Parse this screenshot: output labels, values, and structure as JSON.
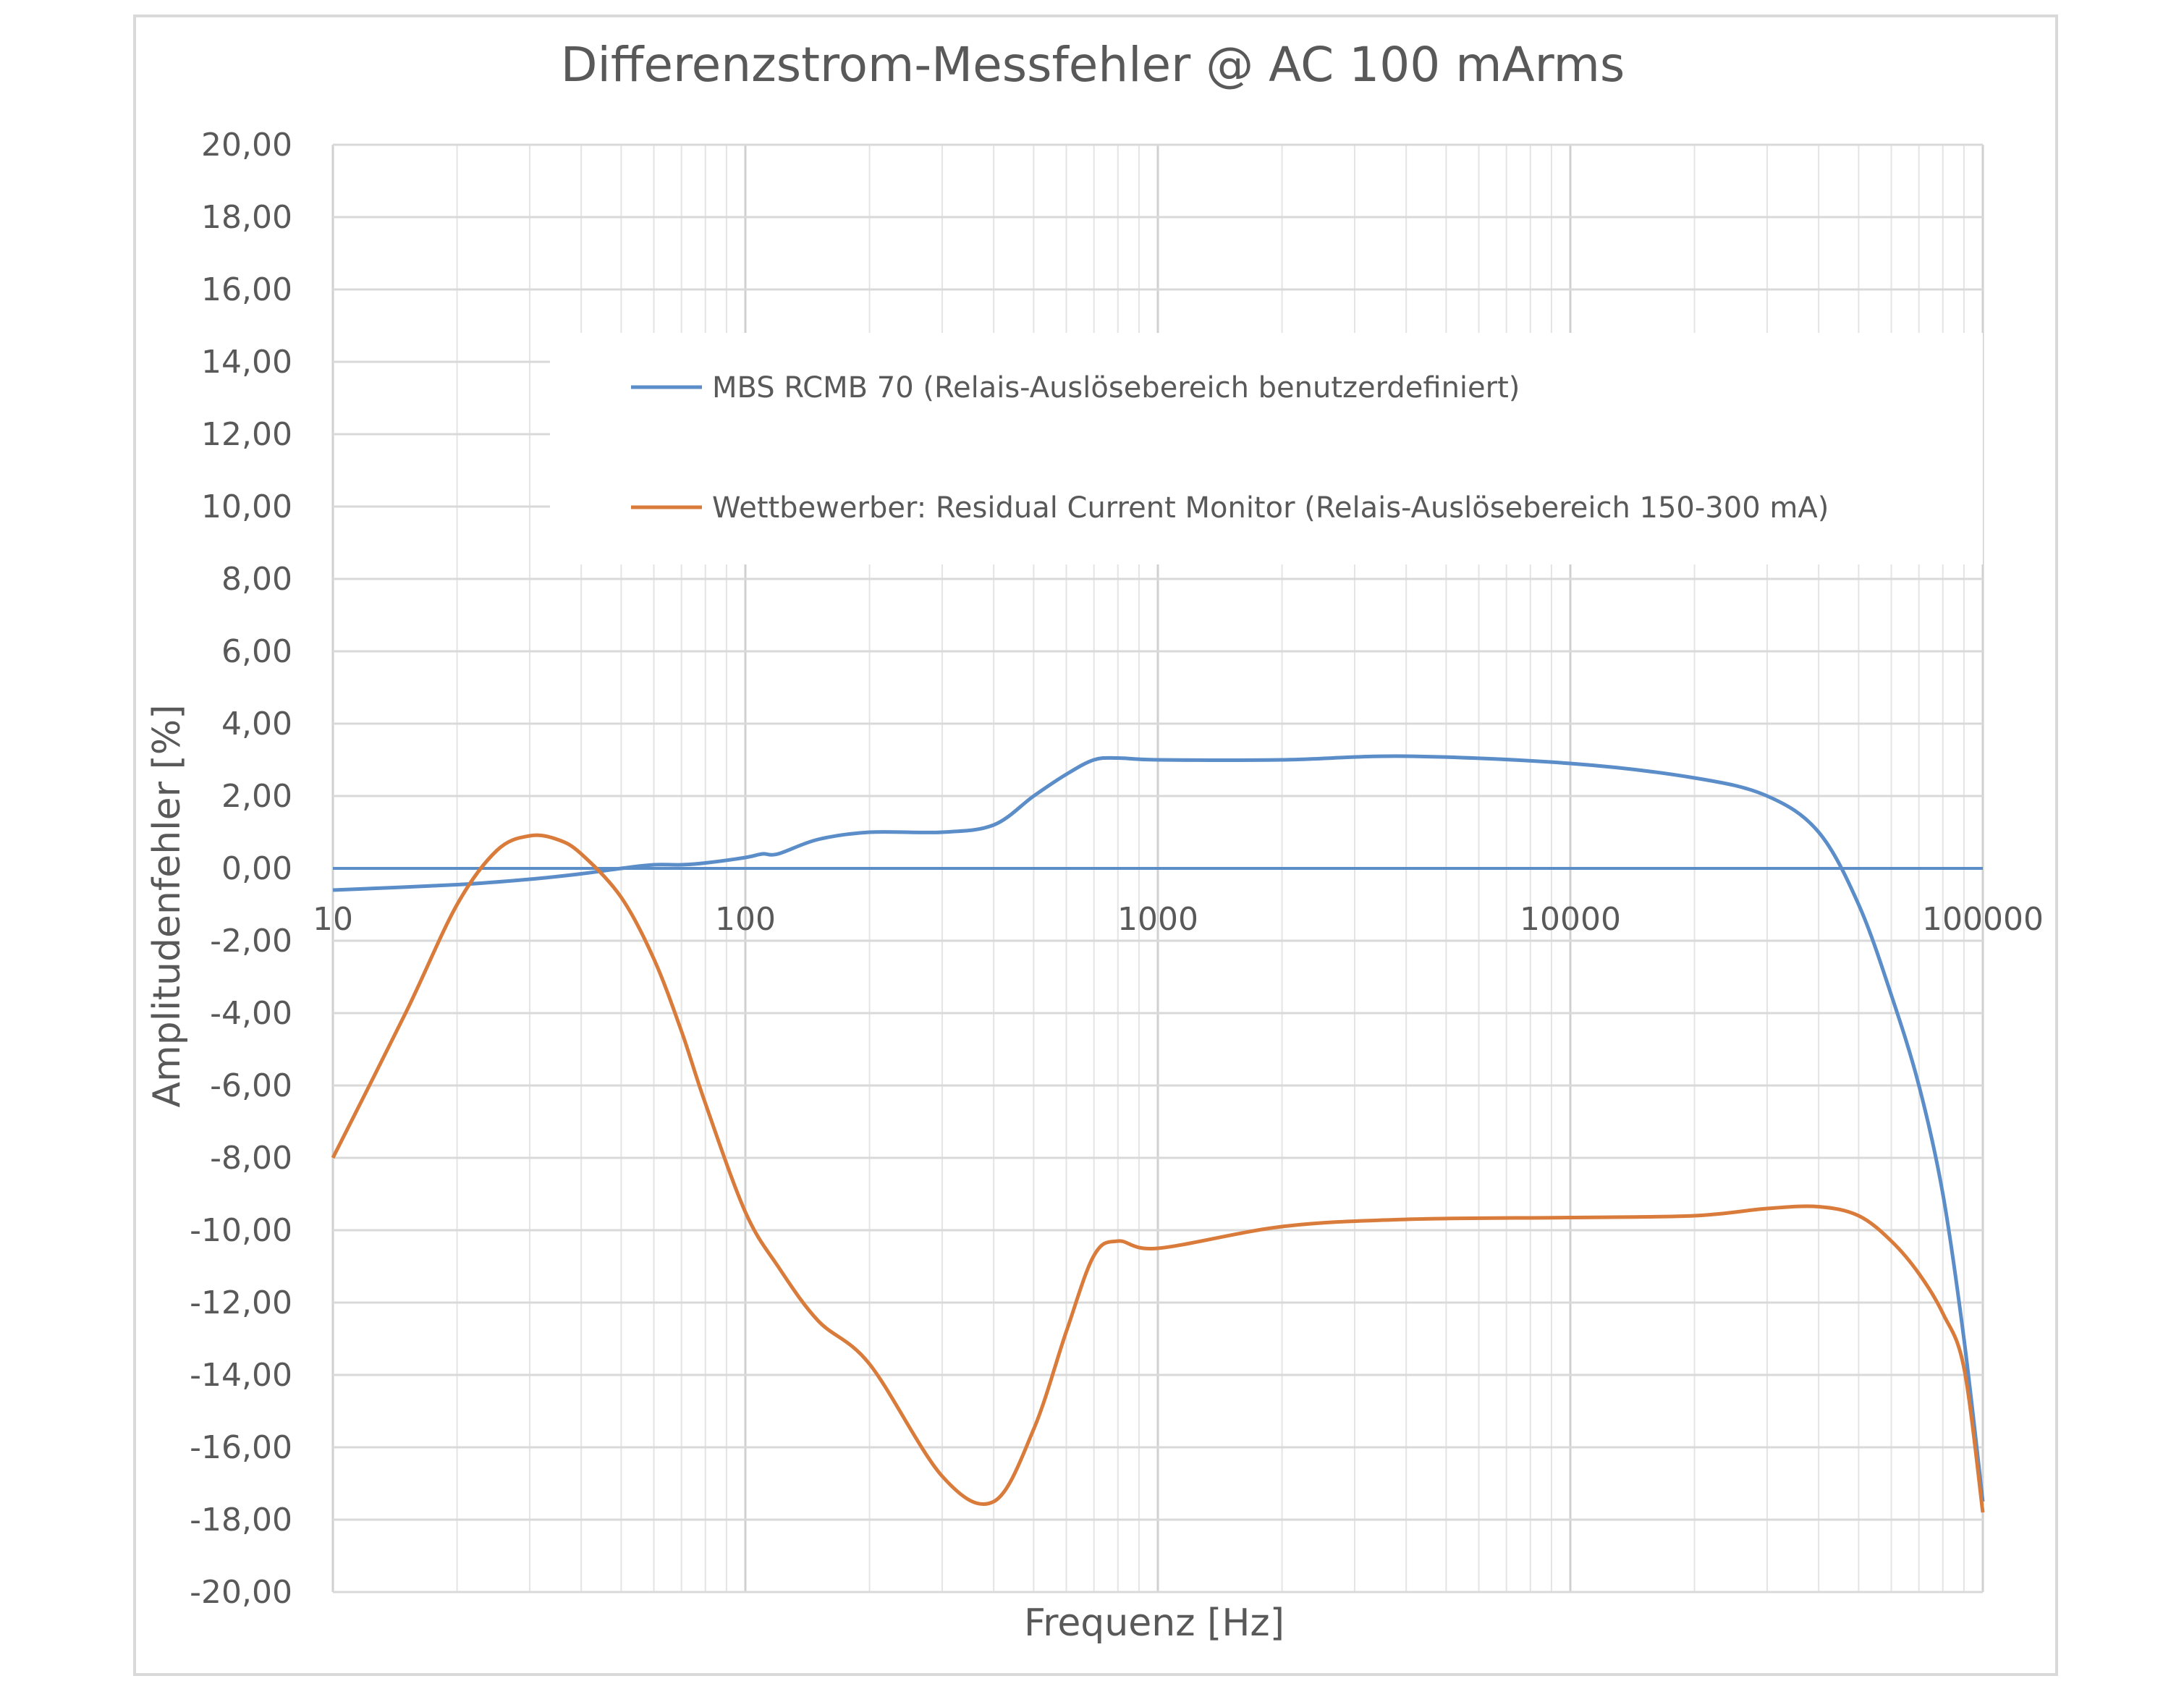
{
  "chart_data": {
    "type": "line",
    "title": "Differenzstrom-Messfehler @ AC 100 mArms",
    "xlabel": "Frequenz [Hz]",
    "ylabel": "Amplitudenfehler [%]",
    "x_scale": "log",
    "xlim": [
      10,
      100000
    ],
    "ylim": [
      -20,
      20
    ],
    "x_ticks": [
      "10",
      "100",
      "1000",
      "10000",
      "100000"
    ],
    "y_ticks": [
      "20,00",
      "18,00",
      "16,00",
      "14,00",
      "12,00",
      "10,00",
      "8,00",
      "6,00",
      "4,00",
      "2,00",
      "0,00",
      "-2,00",
      "-4,00",
      "-6,00",
      "-8,00",
      "-10,00",
      "-12,00",
      "-14,00",
      "-16,00",
      "-18,00",
      "-20,00"
    ],
    "grid": true,
    "legend_position": "top",
    "series": [
      {
        "name": "MBS RCMB 70 (Relais-Auslösebereich benutzerdefiniert)",
        "color": "#5b8dc8",
        "x": [
          10,
          20,
          30,
          40,
          50,
          60,
          70,
          80,
          100,
          110,
          120,
          150,
          200,
          300,
          400,
          500,
          600,
          700,
          800,
          1000,
          2000,
          4000,
          10000,
          20000,
          30000,
          40000,
          50000,
          60000,
          70000,
          80000,
          90000,
          100000
        ],
        "y": [
          -0.6,
          -0.45,
          -0.3,
          -0.15,
          0.0,
          0.1,
          0.1,
          0.15,
          0.3,
          0.4,
          0.4,
          0.8,
          1.0,
          1.0,
          1.2,
          2.0,
          2.6,
          3.0,
          3.05,
          3.0,
          3.0,
          3.1,
          2.9,
          2.5,
          2.0,
          1.0,
          -1.0,
          -3.5,
          -6.0,
          -9.0,
          -13.0,
          -17.5
        ]
      },
      {
        "name": "Wettbewerber: Residual Current Monitor (Relais-Auslösebereich 150-300 mA)",
        "color": "#d97b3a",
        "x": [
          10,
          15,
          20,
          25,
          30,
          35,
          40,
          50,
          60,
          70,
          80,
          100,
          120,
          150,
          200,
          300,
          400,
          500,
          600,
          700,
          800,
          1000,
          2000,
          4000,
          10000,
          20000,
          30000,
          40000,
          50000,
          60000,
          70000,
          80000,
          90000,
          100000
        ],
        "y": [
          -8.0,
          -4.0,
          -1.0,
          0.5,
          0.9,
          0.8,
          0.4,
          -0.8,
          -2.5,
          -4.5,
          -6.5,
          -9.5,
          -11.0,
          -12.5,
          -13.7,
          -16.8,
          -17.5,
          -15.5,
          -12.8,
          -10.7,
          -10.3,
          -10.5,
          -9.9,
          -9.7,
          -9.65,
          -9.6,
          -9.4,
          -9.35,
          -9.6,
          -10.3,
          -11.2,
          -12.3,
          -13.8,
          -17.8
        ]
      }
    ],
    "reference_line": {
      "y": 0,
      "color": "#5b8dc8"
    }
  }
}
